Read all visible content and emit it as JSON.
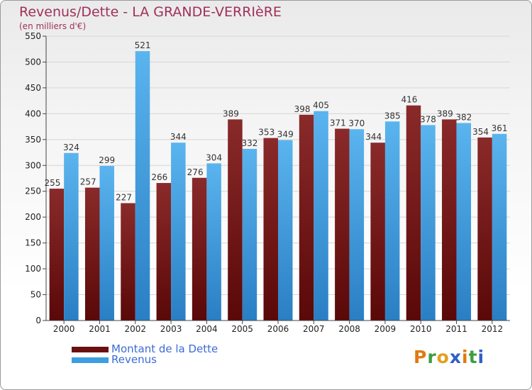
{
  "title": "Revenus/Dette - LA GRANDE-VERRIèRE",
  "subtitle": "(en milliers d'€)",
  "brand": "Proxiti",
  "chart_data": {
    "type": "bar",
    "categories": [
      "2000",
      "2001",
      "2002",
      "2003",
      "2004",
      "2005",
      "2006",
      "2007",
      "2008",
      "2009",
      "2010",
      "2011",
      "2012"
    ],
    "series": [
      {
        "name": "Montant de la Dette",
        "color": "#7a1a1a",
        "values": [
          255,
          257,
          227,
          266,
          276,
          389,
          353,
          398,
          371,
          344,
          416,
          389,
          354
        ]
      },
      {
        "name": "Revenus",
        "color": "#3e9ee0",
        "values": [
          324,
          299,
          521,
          344,
          304,
          332,
          349,
          405,
          370,
          385,
          378,
          382,
          361
        ]
      }
    ],
    "ylim": [
      0,
      550
    ],
    "yticks": [
      0,
      50,
      100,
      150,
      200,
      250,
      300,
      350,
      400,
      450,
      500,
      550
    ],
    "grid": true,
    "legend": "bottom-left"
  }
}
